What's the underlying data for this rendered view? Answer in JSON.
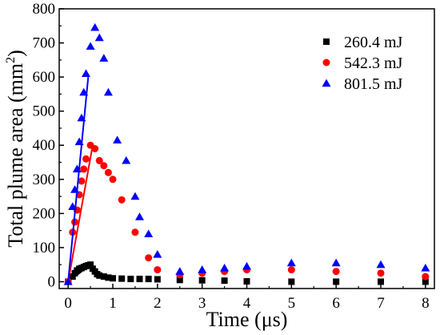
{
  "chart_data": {
    "type": "scatter",
    "xlabel": "Time (μs)",
    "ylabel_main": "Total plume area (mm",
    "ylabel_sup": "2",
    "ylabel_tail": ")",
    "xlim": [
      -0.2,
      8.2
    ],
    "ylim": [
      -20,
      800
    ],
    "x_ticks": [
      0,
      1,
      2,
      3,
      4,
      5,
      6,
      7,
      8
    ],
    "y_ticks": [
      0,
      100,
      200,
      300,
      400,
      500,
      600,
      700,
      800
    ],
    "legend_position": "top-right",
    "series": [
      {
        "name": "260.4 mJ",
        "marker": "square",
        "color": "#000000",
        "points": [
          [
            0,
            0
          ],
          [
            0.1,
            15
          ],
          [
            0.15,
            25
          ],
          [
            0.2,
            33
          ],
          [
            0.25,
            38
          ],
          [
            0.3,
            40
          ],
          [
            0.35,
            43
          ],
          [
            0.4,
            46
          ],
          [
            0.45,
            48
          ],
          [
            0.5,
            50
          ],
          [
            0.55,
            38
          ],
          [
            0.6,
            30
          ],
          [
            0.65,
            22
          ],
          [
            0.7,
            18
          ],
          [
            0.8,
            15
          ],
          [
            0.9,
            12
          ],
          [
            1.0,
            10
          ],
          [
            1.2,
            9
          ],
          [
            1.4,
            8
          ],
          [
            1.6,
            8
          ],
          [
            1.8,
            8
          ],
          [
            2.0,
            7
          ],
          [
            2.5,
            5
          ],
          [
            3.0,
            4
          ],
          [
            3.5,
            3
          ],
          [
            4.0,
            1
          ],
          [
            5.0,
            0
          ],
          [
            6.0,
            0
          ],
          [
            7.0,
            0
          ],
          [
            8.0,
            0
          ]
        ],
        "fit": [
          [
            0,
            0
          ],
          [
            0.5,
            50
          ]
        ]
      },
      {
        "name": "542.3 mJ",
        "marker": "circle",
        "color": "#ff0000",
        "points": [
          [
            0,
            0
          ],
          [
            0.1,
            145
          ],
          [
            0.15,
            175
          ],
          [
            0.2,
            210
          ],
          [
            0.25,
            255
          ],
          [
            0.3,
            295
          ],
          [
            0.35,
            330
          ],
          [
            0.4,
            360
          ],
          [
            0.5,
            400
          ],
          [
            0.6,
            390
          ],
          [
            0.7,
            355
          ],
          [
            0.8,
            340
          ],
          [
            0.9,
            320
          ],
          [
            1.0,
            300
          ],
          [
            1.2,
            240
          ],
          [
            1.5,
            145
          ],
          [
            1.8,
            70
          ],
          [
            2.0,
            35
          ],
          [
            2.5,
            20
          ],
          [
            3.0,
            25
          ],
          [
            3.5,
            30
          ],
          [
            4.0,
            35
          ],
          [
            5.0,
            35
          ],
          [
            6.0,
            30
          ],
          [
            7.0,
            25
          ],
          [
            8.0,
            15
          ]
        ],
        "fit": [
          [
            0,
            0
          ],
          [
            0.55,
            400
          ]
        ]
      },
      {
        "name": "801.5 mJ",
        "marker": "triangle",
        "color": "#0000ff",
        "points": [
          [
            0,
            0
          ],
          [
            0.1,
            220
          ],
          [
            0.15,
            270
          ],
          [
            0.2,
            330
          ],
          [
            0.25,
            410
          ],
          [
            0.3,
            480
          ],
          [
            0.35,
            555
          ],
          [
            0.4,
            610
          ],
          [
            0.5,
            690
          ],
          [
            0.6,
            745
          ],
          [
            0.7,
            715
          ],
          [
            0.8,
            655
          ],
          [
            0.9,
            555
          ],
          [
            1.1,
            415
          ],
          [
            1.3,
            355
          ],
          [
            1.5,
            250
          ],
          [
            1.6,
            190
          ],
          [
            1.8,
            140
          ],
          [
            2.0,
            80
          ],
          [
            2.5,
            30
          ],
          [
            3.0,
            35
          ],
          [
            3.5,
            40
          ],
          [
            4.0,
            45
          ],
          [
            5.0,
            55
          ],
          [
            6.0,
            55
          ],
          [
            7.0,
            50
          ],
          [
            8.0,
            40
          ]
        ],
        "fit": [
          [
            0,
            0
          ],
          [
            0.45,
            600
          ]
        ]
      }
    ]
  }
}
